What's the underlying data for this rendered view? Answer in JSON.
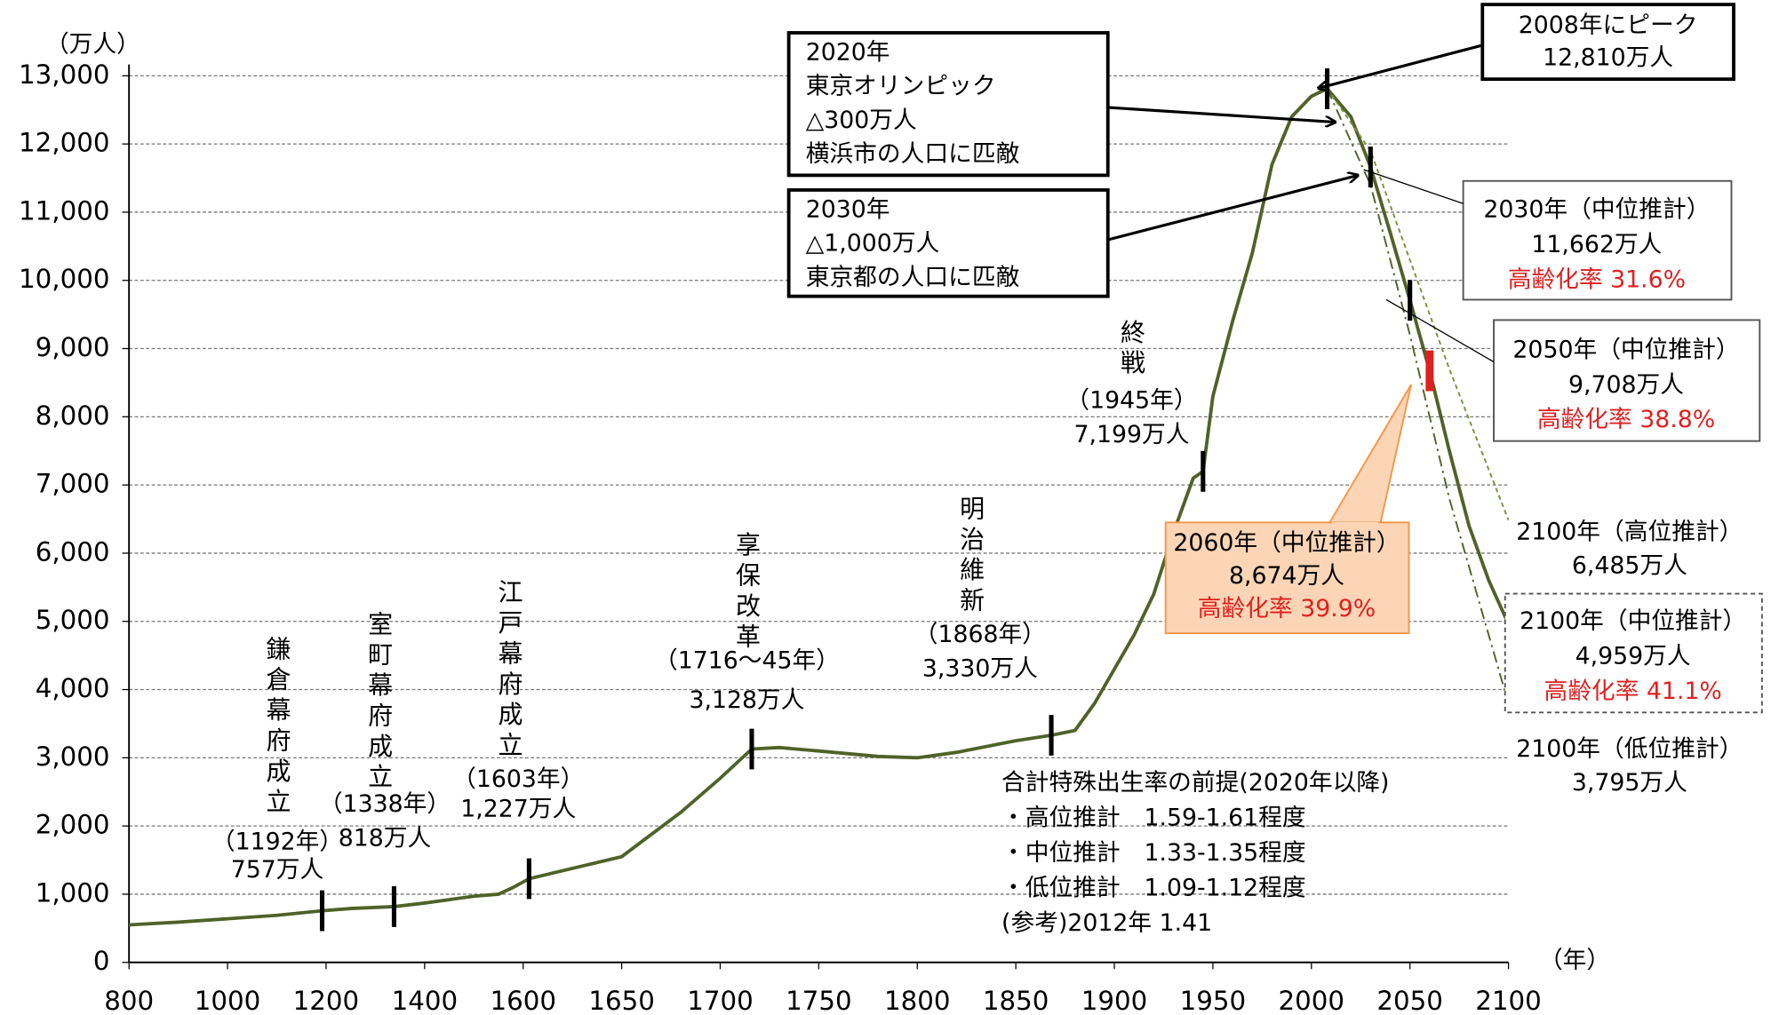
{
  "chart_data": {
    "type": "line",
    "y_unit_label": "（万人）",
    "x_unit_label": "（年）",
    "ylim": [
      0,
      13000
    ],
    "yticks": [
      0,
      {
        "value": 1000,
        "label": "1,000"
      },
      {
        "value": 2000,
        "label": "2,000"
      },
      {
        "value": 3000,
        "label": "3,000"
      },
      {
        "value": 4000,
        "label": "4,000"
      },
      {
        "value": 5000,
        "label": "5,000"
      },
      {
        "value": 6000,
        "label": "6,000"
      },
      {
        "value": 7000,
        "label": "7,000"
      },
      {
        "value": 8000,
        "label": "8,000"
      },
      {
        "value": 9000,
        "label": "9,000"
      },
      {
        "value": 10000,
        "label": "10,000"
      },
      {
        "value": 11000,
        "label": "11,000"
      },
      {
        "value": 12000,
        "label": "12,000"
      },
      {
        "value": 13000,
        "label": "13,000"
      }
    ],
    "xticks": [
      800,
      1000,
      1200,
      1400,
      1600,
      1650,
      1700,
      1750,
      1800,
      1850,
      1900,
      1950,
      2000,
      2050,
      2100
    ],
    "grid": true,
    "series": [
      {
        "color": "#4f6228",
        "style": "solid",
        "x": [
          800,
          900,
          1000,
          1100,
          1192,
          1250,
          1338,
          1400,
          1450,
          1500,
          1550,
          1580,
          1603,
          1650,
          1680,
          1700,
          1716,
          1730,
          1750,
          1780,
          1800,
          1820,
          1850,
          1868,
          1880,
          1890,
          1900,
          1910,
          1920,
          1930,
          1940,
          1945,
          1950,
          1960,
          1970,
          1980,
          1990,
          2000,
          2008,
          2020,
          2030,
          2040,
          2050,
          2060,
          2070,
          2080,
          2090,
          2100
        ],
        "values": [
          550,
          590,
          640,
          690,
          757,
          790,
          818,
          870,
          920,
          970,
          1000,
          1100,
          1227,
          1550,
          2200,
          2700,
          3128,
          3150,
          3100,
          3020,
          3000,
          3080,
          3250,
          3330,
          3400,
          3800,
          4300,
          4800,
          5400,
          6300,
          7100,
          7199,
          8300,
          9400,
          10400,
          11700,
          12400,
          12700,
          12810,
          12400,
          11662,
          10700,
          9708,
          8674,
          7500,
          6400,
          5600,
          4959
        ]
      },
      {
        "color": "#77933c",
        "style": "dashed",
        "x": [
          2008,
          2030,
          2050,
          2070,
          2100
        ],
        "values": [
          12810,
          11900,
          10300,
          8700,
          6485
        ]
      },
      {
        "color": "#4f6228",
        "style": "dashdot",
        "x": [
          2008,
          2030,
          2050,
          2070,
          2100
        ],
        "values": [
          12810,
          11400,
          9200,
          6800,
          3795
        ]
      }
    ],
    "events": [
      {
        "x": 1192,
        "y": 757,
        "title": "鎌倉幕府成立",
        "year": "（1192年）",
        "pop": "757万人"
      },
      {
        "x": 1338,
        "y": 818,
        "title": "室町幕府成立",
        "year": "（1338年）",
        "pop": "818万人"
      },
      {
        "x": 1603,
        "y": 1227,
        "title": "江戸幕府成立",
        "year": "（1603年）",
        "pop": "1,227万人"
      },
      {
        "x": 1716,
        "y": 3128,
        "title": "享保改革",
        "year": "（1716～45年）",
        "pop": "3,128万人"
      },
      {
        "x": 1868,
        "y": 3330,
        "title": "明治維新",
        "year": "（1868年）",
        "pop": "3,330万人"
      },
      {
        "x": 1945,
        "y": 7199,
        "title": "終戦",
        "year": "（1945年）",
        "pop": "7,199万人"
      }
    ],
    "callouts": [
      {
        "lines": [
          "2020年",
          "東京オリンピック",
          "△300万人",
          "横浜市の人口に匹敵"
        ]
      },
      {
        "lines": [
          "2030年",
          "△1,000万人",
          "東京都の人口に匹敵"
        ]
      },
      {
        "x": 2008,
        "y": 12810,
        "lines": [
          "2008年にピーク",
          "12,810万人"
        ]
      },
      {
        "x": 2030,
        "y": 11662,
        "lines": [
          "2030年（中位推計）",
          "11,662万人"
        ],
        "highlight": "高齢化率 31.6%"
      },
      {
        "x": 2050,
        "y": 9708,
        "lines": [
          "2050年（中位推計）",
          "9,708万人"
        ],
        "highlight": "高齢化率 38.8%"
      },
      {
        "x": 2060,
        "y": 8674,
        "lines": [
          "2060年（中位推計）",
          "8,674万人"
        ],
        "highlight": "高齢化率 39.9%"
      },
      {
        "lines": [
          "2100年（高位推計）",
          "6,485万人"
        ]
      },
      {
        "lines": [
          "2100年（中位推計）",
          "4,959万人"
        ],
        "highlight": "高齢化率 41.1%"
      },
      {
        "lines": [
          "2100年（低位推計）",
          "3,795万人"
        ]
      }
    ],
    "highlight_color": "#e02020",
    "note": [
      "合計特殊出生率の前提(2020年以降)",
      "・高位推計　1.59-1.61程度",
      "・中位推計　1.33-1.35程度",
      "・低位推計　1.09-1.12程度",
      "(参考)2012年 1.41"
    ]
  }
}
